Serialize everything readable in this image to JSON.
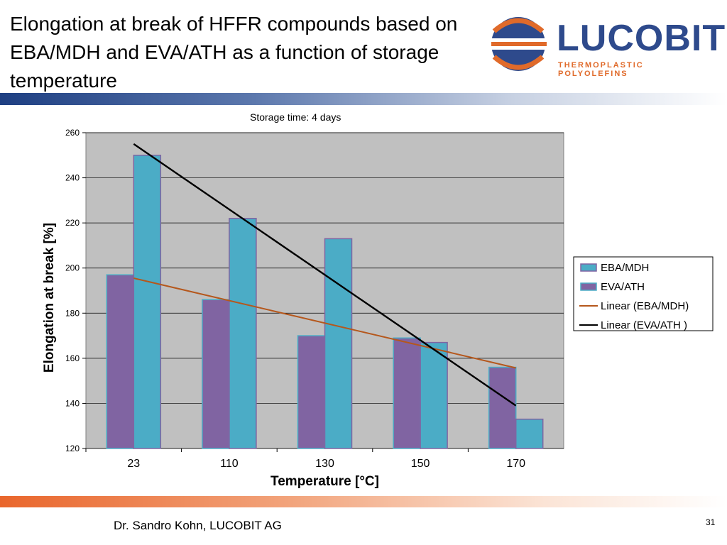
{
  "slide": {
    "title": "Elongation at break of HFFR compounds based on EBA/MDH and EVA/ATH as a function of storage temperature",
    "author": "Dr. Sandro Kohn, LUCOBIT AG",
    "page_number": "31"
  },
  "logo": {
    "name": "LUCOBIT",
    "tagline": "THERMOPLASTIC POLYOLEFINS"
  },
  "colors": {
    "brand_blue": "#2e4a8c",
    "brand_orange": "#e06a2a",
    "plot_bg": "#c0c0c0",
    "eba_mdh": "#8064a2",
    "eva_ath": "#4bacc6",
    "trend_eba_mdh": "#b5571c",
    "trend_eva_ath": "#000000"
  },
  "chart_data": {
    "type": "bar",
    "title": "Storage time: 4 days",
    "xlabel": "Temperature [°C]",
    "ylabel": "Elongation at break [%]",
    "categories": [
      "23",
      "110",
      "130",
      "150",
      "170"
    ],
    "ylim": [
      120,
      260
    ],
    "yticks": [
      120,
      140,
      160,
      180,
      200,
      220,
      240,
      260
    ],
    "grid": true,
    "legend_position": "right",
    "series": [
      {
        "name": "EBA/MDH",
        "values": [
          197,
          186,
          170,
          169,
          156
        ]
      },
      {
        "name": "EVA/ATH",
        "values": [
          250,
          222,
          213,
          167,
          133
        ]
      }
    ],
    "trendlines": [
      {
        "name": "Linear (EBA/MDH)",
        "start": 195.5,
        "end": 155.7
      },
      {
        "name": "Linear (EVA/ATH )",
        "start": 255,
        "end": 139
      }
    ],
    "legend": [
      "EBA/MDH",
      "EVA/ATH",
      "Linear (EBA/MDH)",
      "Linear (EVA/ATH )"
    ]
  }
}
